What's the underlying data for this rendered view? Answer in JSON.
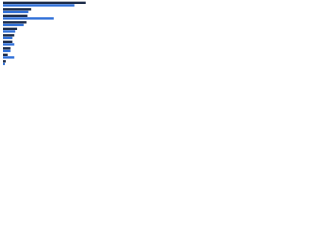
{
  "chart_data": {
    "type": "hbar",
    "categories": [
      null,
      null,
      null,
      null,
      null,
      null,
      null,
      null,
      null,
      null
    ],
    "series": [
      {
        "color": "#1b2a48",
        "values": [
          88,
          30,
          26,
          25,
          15,
          12,
          10,
          8,
          5,
          3
        ]
      },
      {
        "color": "#2e6fd8",
        "values": [
          76,
          27,
          54,
          22,
          13,
          10,
          12,
          8,
          12,
          2
        ]
      }
    ],
    "xlim": [
      0,
      100
    ]
  }
}
